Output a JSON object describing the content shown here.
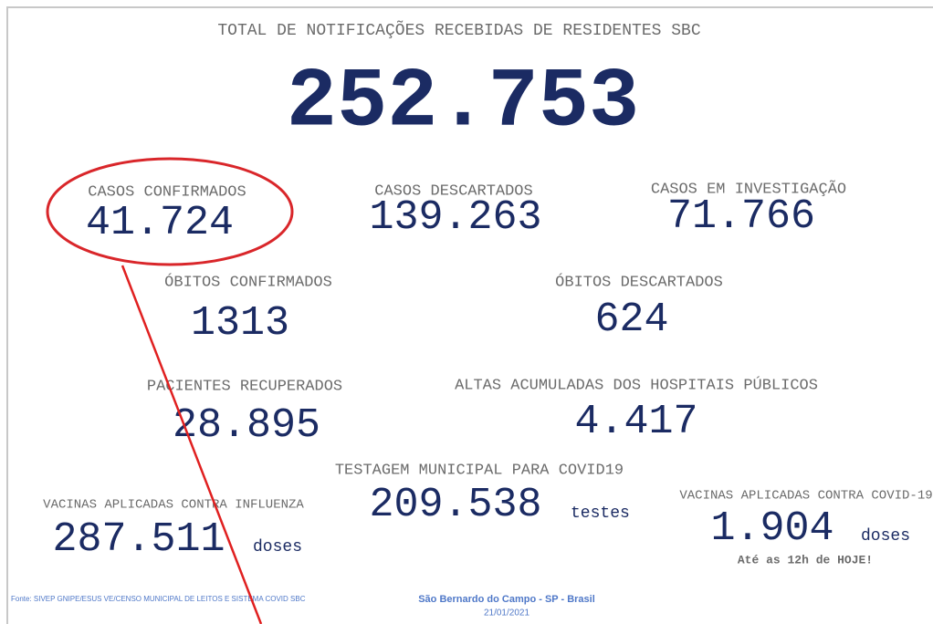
{
  "header": {
    "title": "TOTAL DE NOTIFICAÇÕES RECEBIDAS DE RESIDENTES SBC",
    "total": "252.753"
  },
  "stats": [
    {
      "label": "CASOS CONFIRMADOS",
      "value": "41.724"
    },
    {
      "label": "CASOS DESCARTADOS",
      "value": "139.263"
    },
    {
      "label": "CASOS EM INVESTIGAÇÃO",
      "value": "71.766"
    },
    {
      "label": "ÓBITOS CONFIRMADOS",
      "value": "1313"
    },
    {
      "label": "ÓBITOS DESCARTADOS",
      "value": "624"
    },
    {
      "label": "PACIENTES RECUPERADOS",
      "value": "28.895"
    },
    {
      "label": "ALTAS ACUMULADAS DOS HOSPITAIS PÚBLICOS",
      "value": "4.417"
    },
    {
      "label": "TESTAGEM MUNICIPAL PARA COVID19",
      "value": "209.538",
      "unit": "testes"
    },
    {
      "label": "VACINAS APLICADAS CONTRA INFLUENZA",
      "value": "287.511",
      "unit": "doses"
    },
    {
      "label": "VACINAS APLICADAS CONTRA COVID-19",
      "value": "1.904",
      "unit": "doses",
      "note": "Até as 12h de HOJE!"
    }
  ],
  "footer": {
    "source": "Fonte: SIVEP GNIPE/ESUS VE/CENSO MUNICIPAL DE LEITOS E SISTEMA COVID SBC",
    "place": "São Bernardo do Campo - SP - Brasil",
    "date": "21/01/2021"
  }
}
